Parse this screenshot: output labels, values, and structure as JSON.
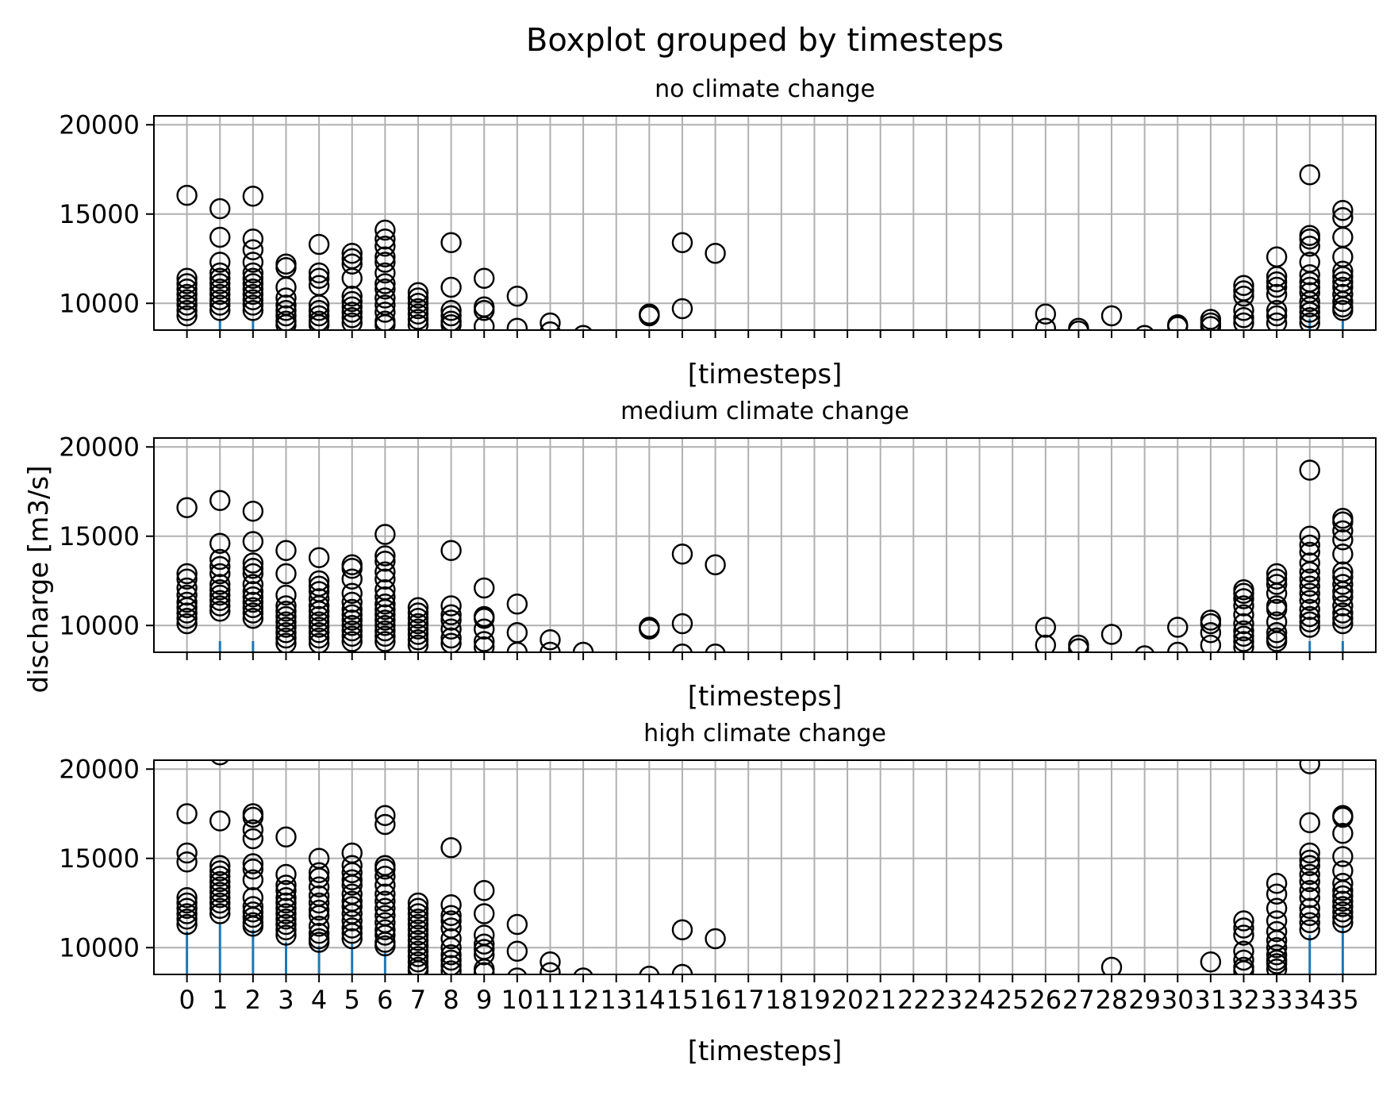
{
  "chart_data": {
    "type": "box",
    "title": "Boxplot grouped by timesteps",
    "ylabel": "discharge [m3/s]",
    "xlabel": "[timesteps]",
    "categories": [
      "0",
      "1",
      "2",
      "3",
      "4",
      "5",
      "6",
      "7",
      "8",
      "9",
      "10",
      "11",
      "12",
      "13",
      "14",
      "15",
      "16",
      "17",
      "18",
      "19",
      "20",
      "21",
      "22",
      "23",
      "24",
      "25",
      "26",
      "27",
      "28",
      "29",
      "30",
      "31",
      "32",
      "33",
      "34",
      "35"
    ],
    "ylim": [
      8500,
      20500
    ],
    "yticks": [
      10000,
      15000,
      20000
    ],
    "grid": true,
    "panels": [
      {
        "title": "no climate change",
        "xlabel": "[timesteps]",
        "fliers": {
          "0": [
            16050,
            11400,
            11100,
            10800,
            10500,
            10200,
            9900,
            9600,
            9300
          ],
          "1": [
            15300,
            13700,
            12300,
            11700,
            11400,
            11100,
            10800,
            10500,
            10200,
            9900,
            9600
          ],
          "2": [
            16000,
            13600,
            13000,
            12300,
            11700,
            11400,
            11100,
            10800,
            10500,
            10200,
            9900,
            9600
          ],
          "3": [
            12200,
            12000,
            10900,
            10300,
            9900,
            9600,
            9300,
            9000,
            8800
          ],
          "4": [
            13300,
            11700,
            11400,
            11000,
            9900,
            9600,
            9300,
            9000,
            8800
          ],
          "5": [
            12800,
            12500,
            12200,
            11400,
            10400,
            10100,
            9800,
            9500,
            9200,
            8900
          ],
          "6": [
            14100,
            13600,
            13200,
            12600,
            12300,
            11700,
            11100,
            10800,
            10300,
            9900,
            9500,
            9000,
            8800
          ],
          "7": [
            10600,
            10300,
            10000,
            9700,
            9400,
            9100,
            8800
          ],
          "8": [
            13400,
            10900,
            9600,
            9300,
            9000,
            8800
          ],
          "9": [
            11400,
            9800,
            9600,
            8700
          ],
          "10": [
            10400,
            8600
          ],
          "11": [
            8900,
            8400
          ],
          "12": [
            8200
          ],
          "14": [
            9400,
            9300
          ],
          "15": [
            13400,
            9700
          ],
          "16": [
            12800
          ],
          "26": [
            9400,
            8600
          ],
          "27": [
            8600,
            8450
          ],
          "28": [
            9300
          ],
          "29": [
            8200
          ],
          "30": [
            8800,
            8700
          ],
          "31": [
            9100,
            8900,
            8700
          ],
          "32": [
            11000,
            10700,
            10400,
            9600,
            9200,
            8900
          ],
          "33": [
            12600,
            11500,
            11200,
            10900,
            10500,
            9600,
            9300,
            8900
          ],
          "34": [
            17200,
            13800,
            13600,
            13200,
            12300,
            11600,
            11200,
            10900,
            10600,
            10100,
            9800,
            9500,
            9200,
            8900
          ],
          "35": [
            15200,
            14800,
            13700,
            12600,
            11800,
            11500,
            11200,
            10900,
            10500,
            10100,
            9800,
            9600
          ]
        }
      },
      {
        "title": "medium climate change",
        "xlabel": "[timesteps]",
        "fliers": {
          "0": [
            16600,
            12900,
            12600,
            12100,
            11700,
            11300,
            11000,
            10700,
            10400,
            10100
          ],
          "1": [
            17000,
            14600,
            13700,
            13300,
            12900,
            12300,
            12000,
            11700,
            11400,
            11100,
            10800
          ],
          "2": [
            16400,
            14700,
            13500,
            13200,
            12900,
            12300,
            11900,
            11600,
            11300,
            11000,
            10700,
            10400
          ],
          "3": [
            14200,
            12900,
            11700,
            11100,
            10800,
            10500,
            10200,
            9900,
            9600,
            9300,
            9000
          ],
          "4": [
            13800,
            12500,
            12200,
            11900,
            11500,
            11100,
            10800,
            10500,
            10200,
            9900,
            9600,
            9300,
            9000
          ],
          "5": [
            13400,
            13200,
            12600,
            11800,
            11300,
            10900,
            10600,
            10300,
            10000,
            9700,
            9400,
            9100
          ],
          "6": [
            15100,
            13900,
            13600,
            13000,
            12600,
            12000,
            11600,
            11200,
            10900,
            10600,
            10300,
            10000,
            9700,
            9400,
            9100
          ],
          "7": [
            11000,
            10700,
            10400,
            10100,
            9800,
            9500,
            9200,
            8900
          ],
          "8": [
            14200,
            11100,
            10600,
            10300,
            9800,
            9300,
            9000
          ],
          "9": [
            12100,
            10500,
            10400,
            9800,
            9100,
            8800
          ],
          "10": [
            11200,
            9600,
            8500
          ],
          "11": [
            9200,
            8500
          ],
          "12": [
            8500
          ],
          "14": [
            9900,
            9800
          ],
          "15": [
            14000,
            10100,
            8400
          ],
          "16": [
            13400,
            8400
          ],
          "26": [
            9900,
            8900
          ],
          "27": [
            8900,
            8700
          ],
          "28": [
            9500
          ],
          "29": [
            8300
          ],
          "30": [
            9900,
            8500
          ],
          "31": [
            10300,
            10100,
            9600,
            8900
          ],
          "32": [
            12000,
            11800,
            11500,
            11100,
            10600,
            10100,
            9700,
            9400,
            9100,
            8800
          ],
          "33": [
            12900,
            12600,
            12300,
            11800,
            11100,
            10900,
            10200,
            9600,
            9300,
            9100
          ],
          "34": [
            18700,
            15000,
            14500,
            14100,
            13500,
            13000,
            12600,
            12200,
            11800,
            11400,
            10900,
            10500,
            10200,
            9900
          ],
          "35": [
            16000,
            15800,
            15300,
            14800,
            14000,
            13000,
            12700,
            12300,
            11900,
            11600,
            11100,
            10700,
            10400,
            10100
          ]
        }
      },
      {
        "title": "high climate change",
        "xlabel": "[timesteps]",
        "fliers": {
          "0": [
            17500,
            15300,
            14800,
            12800,
            12500,
            12200,
            11900,
            11600,
            11300
          ],
          "1": [
            20800,
            17100,
            14600,
            14300,
            14000,
            13700,
            13400,
            13100,
            12800,
            12500,
            12200,
            11900
          ],
          "2": [
            17500,
            17300,
            16600,
            16100,
            14700,
            14400,
            13800,
            12800,
            12300,
            12000,
            11700,
            11400,
            11200
          ],
          "3": [
            16200,
            14100,
            13500,
            13200,
            12800,
            12500,
            12200,
            11900,
            11600,
            11300,
            11000,
            10700
          ],
          "4": [
            15000,
            14200,
            13900,
            13400,
            12900,
            12500,
            12100,
            11800,
            11200,
            10800,
            10500,
            10300
          ],
          "5": [
            15300,
            14600,
            14200,
            13800,
            13500,
            13000,
            12600,
            12300,
            11900,
            11500,
            11100,
            10800,
            10500
          ],
          "6": [
            17400,
            16900,
            14600,
            14400,
            14000,
            13500,
            13000,
            12600,
            12200,
            11800,
            11400,
            11000,
            10700,
            10300,
            10100
          ],
          "7": [
            12500,
            12200,
            11900,
            11600,
            11300,
            11000,
            10700,
            10400,
            10100,
            9800,
            9500,
            9200,
            8900,
            8700
          ],
          "8": [
            15600,
            12400,
            11800,
            11500,
            11100,
            10500,
            10000,
            9600,
            9300,
            9000,
            8700
          ],
          "9": [
            13200,
            11900,
            10700,
            10200,
            9900,
            9600,
            8800,
            8600
          ],
          "10": [
            11300,
            9800,
            8300
          ],
          "11": [
            9200,
            8600
          ],
          "12": [
            8300
          ],
          "14": [
            8400
          ],
          "15": [
            11000,
            8500
          ],
          "16": [
            10500
          ],
          "28": [
            8900
          ],
          "31": [
            9200
          ],
          "32": [
            11500,
            11100,
            10700,
            9800,
            9300,
            8900,
            8700
          ],
          "33": [
            13600,
            13000,
            12200,
            11500,
            10900,
            10400,
            10000,
            9600,
            9300,
            9100,
            8800
          ],
          "34": [
            20300,
            17000,
            15300,
            14900,
            14600,
            14100,
            13700,
            13200,
            12800,
            12200,
            11800,
            11400,
            11000
          ],
          "35": [
            17400,
            17300,
            16400,
            15100,
            14300,
            13600,
            13200,
            12900,
            12600,
            12300,
            12000,
            11700,
            11400
          ]
        },
        "whiskers": {
          "0": 10900,
          "1": 11300,
          "2": 11000,
          "3": 10300,
          "4": 10100,
          "5": 10200,
          "6": 9700,
          "34": 10700,
          "35": 11100
        }
      }
    ]
  }
}
